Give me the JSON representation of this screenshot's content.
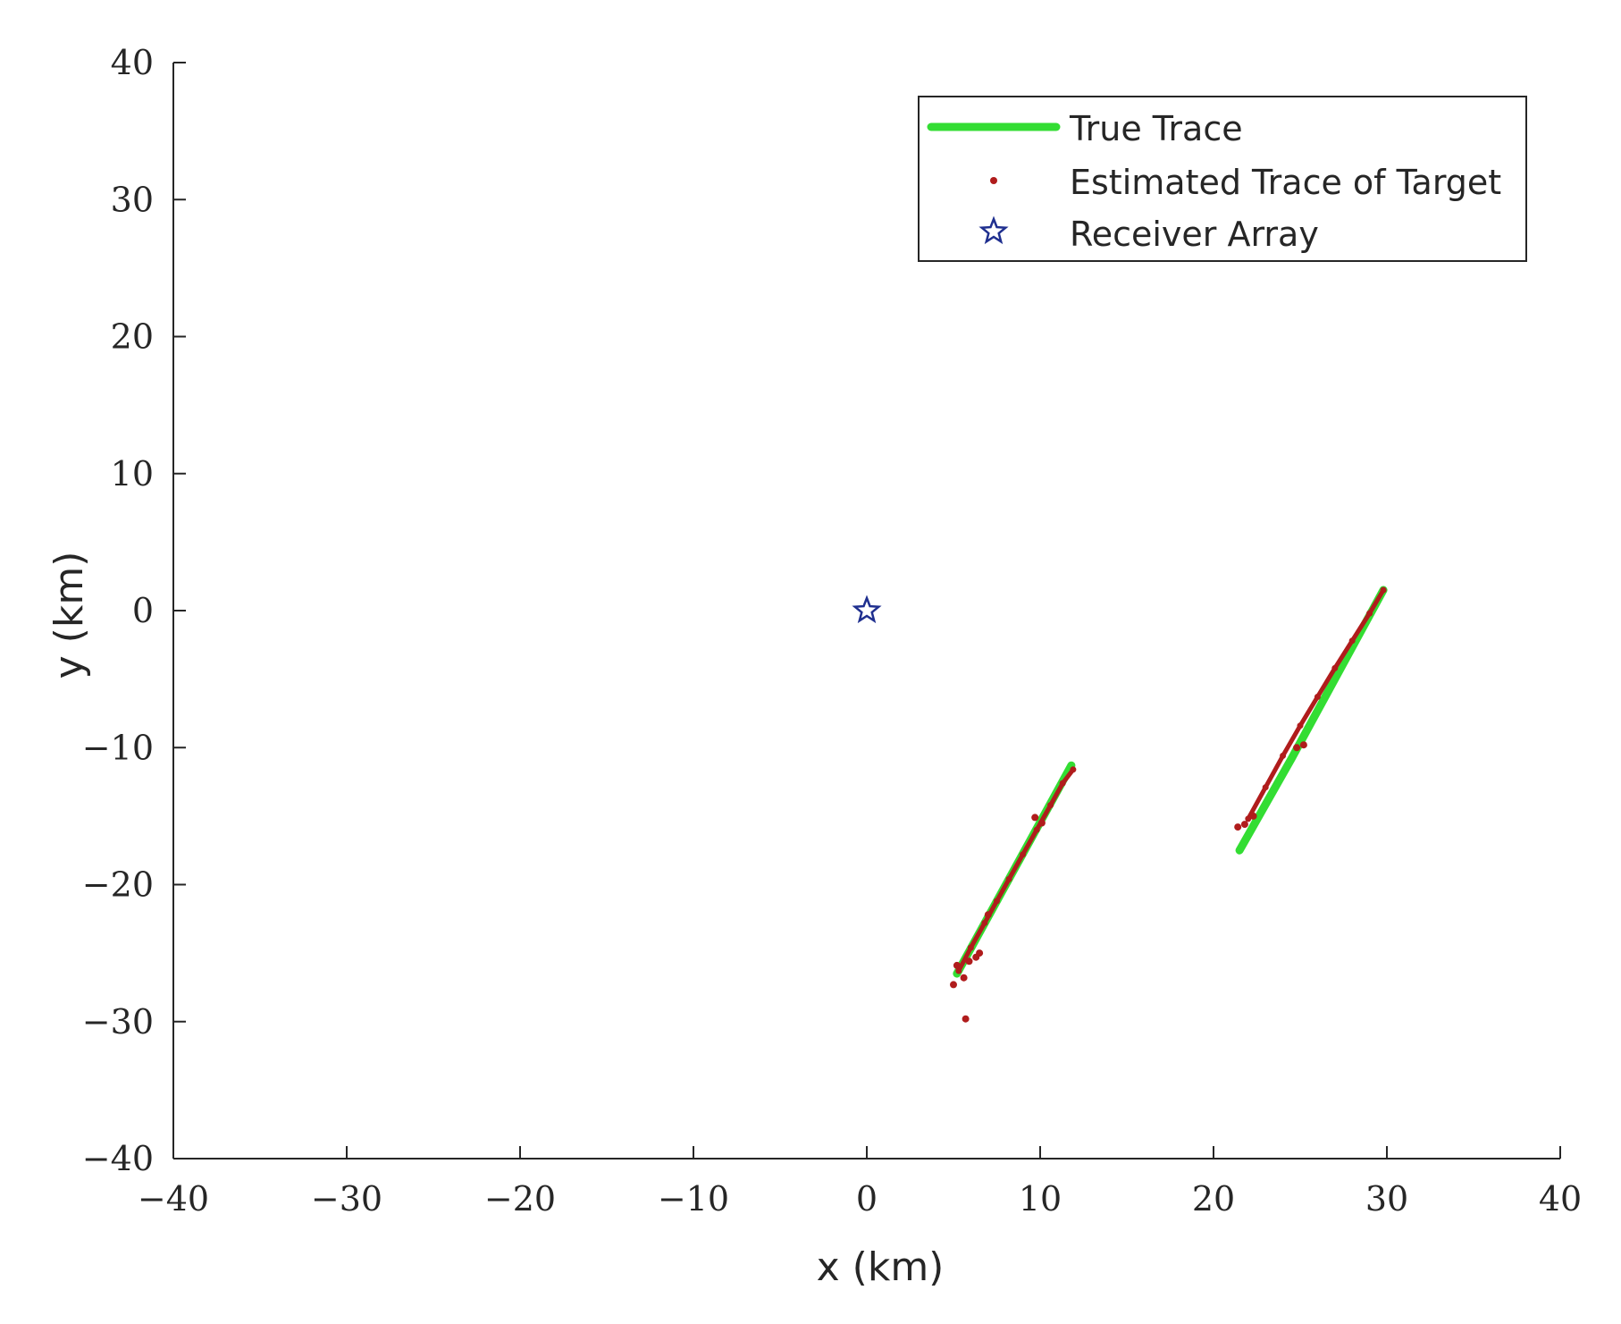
{
  "chart_data": {
    "type": "line",
    "title": "",
    "xlabel": "x (km)",
    "ylabel": "y (km)",
    "xlim": [
      -40,
      40
    ],
    "ylim": [
      -40,
      40
    ],
    "xticks": [
      -40,
      -30,
      -20,
      -10,
      0,
      10,
      20,
      30,
      40
    ],
    "yticks": [
      -40,
      -30,
      -20,
      -10,
      0,
      10,
      20,
      30,
      40
    ],
    "grid": false,
    "legend_position": "top-right",
    "colors": {
      "true_trace": "#33dd33",
      "estimated": "#b01c1c",
      "receiver": "#1f2f8f"
    },
    "series": [
      {
        "name": "True Trace",
        "kind": "line",
        "segments": [
          [
            [
              5.2,
              -26.5
            ],
            [
              11.8,
              -11.3
            ]
          ],
          [
            [
              21.5,
              -17.5
            ],
            [
              24.5,
              -10.8
            ],
            [
              29.8,
              1.5
            ]
          ]
        ]
      },
      {
        "name": "Estimated Trace of Target",
        "kind": "scatter",
        "segments": [
          [
            [
              5.3,
              -26.3
            ],
            [
              6.0,
              -24.6
            ],
            [
              6.8,
              -22.8
            ],
            [
              7.5,
              -21.2
            ],
            [
              8.2,
              -19.6
            ],
            [
              9.0,
              -17.8
            ],
            [
              9.8,
              -16.0
            ],
            [
              10.6,
              -14.2
            ],
            [
              11.3,
              -12.6
            ],
            [
              11.9,
              -11.6
            ]
          ],
          [
            [
              22.0,
              -15.2
            ],
            [
              23.0,
              -12.9
            ],
            [
              24.0,
              -10.6
            ],
            [
              25.0,
              -8.4
            ],
            [
              26.0,
              -6.3
            ],
            [
              27.0,
              -4.2
            ],
            [
              28.0,
              -2.2
            ],
            [
              29.0,
              -0.2
            ],
            [
              29.8,
              1.5
            ]
          ]
        ],
        "outliers": [
          [
            5.0,
            -27.3
          ],
          [
            5.6,
            -26.8
          ],
          [
            5.2,
            -25.9
          ],
          [
            5.9,
            -25.6
          ],
          [
            6.3,
            -25.3
          ],
          [
            6.5,
            -25.0
          ],
          [
            5.7,
            -29.8
          ],
          [
            7.0,
            -22.2
          ],
          [
            9.7,
            -15.1
          ],
          [
            10.1,
            -15.5
          ],
          [
            21.4,
            -15.8
          ],
          [
            21.8,
            -15.6
          ],
          [
            22.3,
            -15.0
          ],
          [
            24.8,
            -10.0
          ],
          [
            25.2,
            -9.8
          ]
        ]
      },
      {
        "name": "Receiver Array",
        "kind": "marker",
        "points": [
          [
            0,
            0
          ]
        ]
      }
    ]
  }
}
